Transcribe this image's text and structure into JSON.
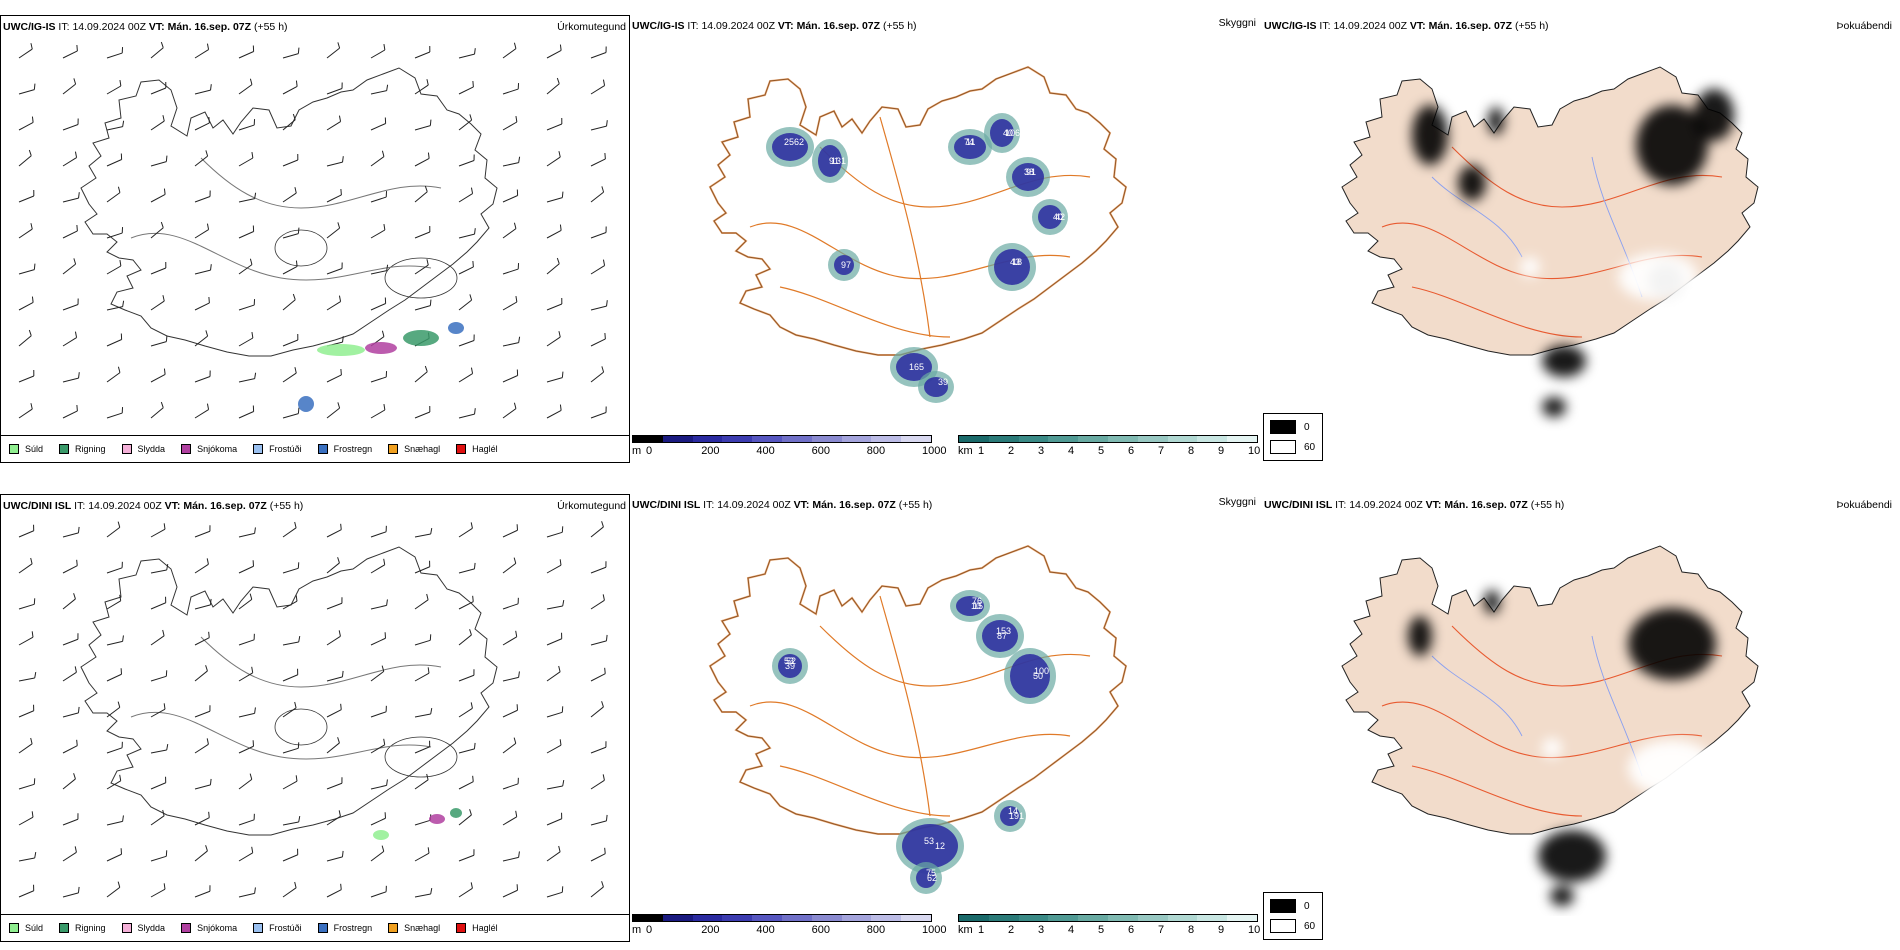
{
  "rows": [
    {
      "model": "UWC/IG-IS",
      "it_label": "IT:",
      "it_value": "14.09.2024 00Z",
      "vt_label": "VT:",
      "vt_value": "Mán. 16.sep. 07Z",
      "lead": "(+55 h)"
    },
    {
      "model": "UWC/DINI ISL",
      "it_label": "IT:",
      "it_value": "14.09.2024 00Z",
      "vt_label": "VT:",
      "vt_value": "Mán. 16.sep. 07Z",
      "lead": "(+55 h)"
    }
  ],
  "panel_titles": {
    "precip_type": "Úrkomutegund",
    "visibility": "Skyggni",
    "fog": "Þokuábendi"
  },
  "precip_legend": [
    {
      "label": "Súld",
      "color": "#90ee90"
    },
    {
      "label": "Rigning",
      "color": "#3a9a6a"
    },
    {
      "label": "Slydda",
      "color": "#f4b0d8"
    },
    {
      "label": "Snjókoma",
      "color": "#b040a0"
    },
    {
      "label": "Frostúði",
      "color": "#9ac0f0"
    },
    {
      "label": "Frostregn",
      "color": "#3a70c0"
    },
    {
      "label": "Snæhagl",
      "color": "#f0a020"
    },
    {
      "label": "Haglél",
      "color": "#e01010"
    }
  ],
  "cloudbase_bar": {
    "unit": "m",
    "ticks": [
      "0",
      "200",
      "400",
      "600",
      "800",
      "1000"
    ],
    "colors": [
      "#000000",
      "#1a1a80",
      "#2a2aa0",
      "#3c3cb0",
      "#5656c0",
      "#7070c8",
      "#8a8ad0",
      "#a4a4dc",
      "#bcbce6",
      "#d8d8f0"
    ]
  },
  "vis_bar": {
    "unit": "km",
    "ticks": [
      "1",
      "2",
      "3",
      "4",
      "5",
      "6",
      "7",
      "8",
      "9",
      "10"
    ],
    "colors": [
      "#1a6a6a",
      "#2a7a78",
      "#3a8a86",
      "#509a94",
      "#68aaa2",
      "#80bab2",
      "#98c8c2",
      "#b0d8d2",
      "#c8e6e2",
      "#e4f4f2"
    ]
  },
  "fog_legend": {
    "items": [
      {
        "value": "0",
        "color": "#000000"
      },
      {
        "value": "60",
        "color": "#ffffff"
      }
    ]
  },
  "cloud_labels_top": [
    "25",
    "131",
    "11",
    "106",
    "91",
    "42",
    "18",
    "165",
    "39",
    "97",
    "62",
    "91",
    "74",
    "40",
    "38",
    "40",
    "43"
  ],
  "cloud_labels_bottom": [
    "53",
    "10",
    "153",
    "50",
    "14",
    "12",
    "75",
    "39",
    "76",
    "87",
    "100",
    "191",
    "53",
    "62",
    "52",
    "15"
  ]
}
